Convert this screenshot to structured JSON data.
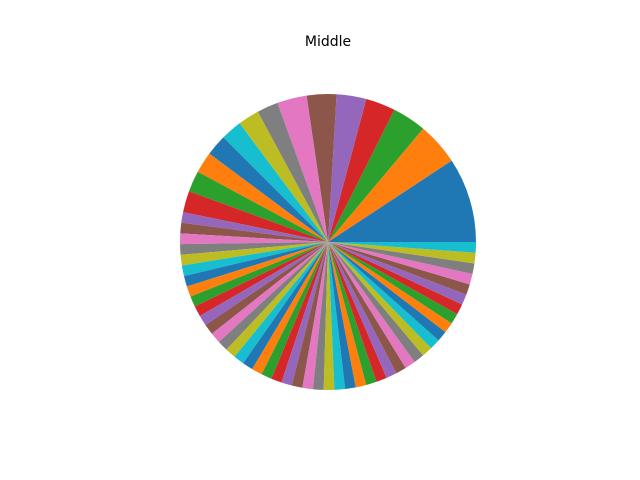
{
  "chart_data": {
    "type": "pie",
    "title": "Middle",
    "start_angle_deg": 0,
    "direction": "counterclockwise",
    "values": [
      10.0,
      5.0,
      4.0,
      3.5,
      3.5,
      3.5,
      3.5,
      2.5,
      2.5,
      2.5,
      2.5,
      2.5,
      2.5,
      2.5,
      1.25,
      1.25,
      1.25,
      1.25,
      1.25,
      1.25,
      1.25,
      1.25,
      1.25,
      1.25,
      1.25,
      1.25,
      1.25,
      1.25,
      1.25,
      1.25,
      1.25,
      1.25,
      1.25,
      1.25,
      1.25,
      1.25,
      1.25,
      1.25,
      1.25,
      1.25,
      1.25,
      1.25,
      1.25,
      1.25,
      1.25,
      1.25,
      1.25,
      1.25,
      1.25,
      1.25,
      1.25,
      1.25,
      1.25,
      1.25,
      1.25,
      1.25,
      1.25,
      1.25,
      1.25,
      1.25
    ],
    "palette": [
      "#1f77b4",
      "#ff7f0e",
      "#2ca02c",
      "#d62728",
      "#9467bd",
      "#8c564b",
      "#e377c2",
      "#7f7f7f",
      "#bcbd22",
      "#17becf"
    ]
  }
}
